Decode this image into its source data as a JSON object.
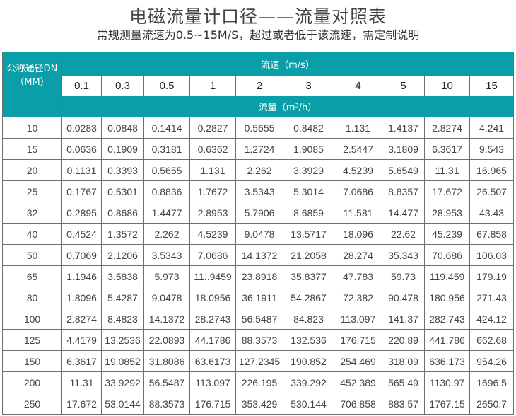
{
  "title": "电磁流量计口径——流量对照表",
  "subtitle": "常规测量流速为0.5~15M/S，超过或者低于该流速，需定制说明",
  "accent_color": "#0a9fa8",
  "table": {
    "dn_header_line1": "公称通径DN",
    "dn_header_line2": "（MM）",
    "velocity_header": "流速（m/s）",
    "flow_header": "流量（m³/h）",
    "velocities": [
      "0.1",
      "0.3",
      "0.5",
      "1",
      "2",
      "3",
      "4",
      "5",
      "10",
      "15"
    ],
    "rows": [
      {
        "dn": "10",
        "values": [
          "0.0283",
          "0.0848",
          "0.1414",
          "0.2827",
          "0.5655",
          "0.8482",
          "1.131",
          "1.4137",
          "2.8274",
          "4.241"
        ]
      },
      {
        "dn": "15",
        "values": [
          "0.0636",
          "0.1909",
          "0.3181",
          "0.6362",
          "1.2724",
          "1.9085",
          "2.5447",
          "3.1809",
          "6.3617",
          "9.543"
        ]
      },
      {
        "dn": "20",
        "values": [
          "0.1131",
          "0.3393",
          "0.5655",
          "1.131",
          "2.262",
          "3.3929",
          "4.5239",
          "5.6549",
          "11.31",
          "16.965"
        ]
      },
      {
        "dn": "25",
        "values": [
          "0.1767",
          "0.5301",
          "0.8836",
          "1.7672",
          "3.5343",
          "5.3014",
          "7.0686",
          "8.8357",
          "17.672",
          "26.507"
        ]
      },
      {
        "dn": "32",
        "values": [
          "0.2895",
          "0.8686",
          "1.4477",
          "2.8953",
          "5.7906",
          "8.6859",
          "11.581",
          "14.477",
          "28.953",
          "43.43"
        ]
      },
      {
        "dn": "40",
        "values": [
          "0.4524",
          "1.3572",
          "2.262",
          "4.5239",
          "9.0478",
          "13.5717",
          "18.096",
          "22.62",
          "45.239",
          "67.858"
        ]
      },
      {
        "dn": "50",
        "values": [
          "0.7069",
          "2.1206",
          "3.5343",
          "7.0686",
          "14.1372",
          "21.2058",
          "28.274",
          "35.343",
          "70.686",
          "106.03"
        ]
      },
      {
        "dn": "65",
        "values": [
          "1.1946",
          "3.5838",
          "5.973",
          "11..9459",
          "23.8918",
          "35.8377",
          "47.783",
          "59.73",
          "119.459",
          "179.19"
        ]
      },
      {
        "dn": "80",
        "values": [
          "1.8096",
          "5.4287",
          "9.0478",
          "18.0956",
          "36.1911",
          "54.2867",
          "72.382",
          "90.478",
          "180.956",
          "271.43"
        ]
      },
      {
        "dn": "100",
        "values": [
          "2.8274",
          "8.4823",
          "14.1372",
          "28.2743",
          "56.5487",
          "84.823",
          "113.097",
          "141.37",
          "282.743",
          "424.12"
        ]
      },
      {
        "dn": "125",
        "values": [
          "4.4179",
          "13.2536",
          "22.0893",
          "44.1786",
          "88.3573",
          "132.536",
          "176.715",
          "220.89",
          "441.786",
          "662.68"
        ]
      },
      {
        "dn": "150",
        "values": [
          "6.3617",
          "19.0852",
          "31.8086",
          "63.6173",
          "127.2345",
          "190.852",
          "254.469",
          "318.09",
          "636.173",
          "954.26"
        ]
      },
      {
        "dn": "200",
        "values": [
          "11.31",
          "33.9292",
          "56.5487",
          "113.097",
          "226.195",
          "339.292",
          "452.389",
          "565.49",
          "1130.97",
          "1696.5"
        ]
      },
      {
        "dn": "250",
        "values": [
          "17.672",
          "53.0144",
          "88.3573",
          "176.715",
          "353.429",
          "530.144",
          "706.858",
          "883.57",
          "1767.15",
          "2650.7"
        ]
      }
    ]
  }
}
